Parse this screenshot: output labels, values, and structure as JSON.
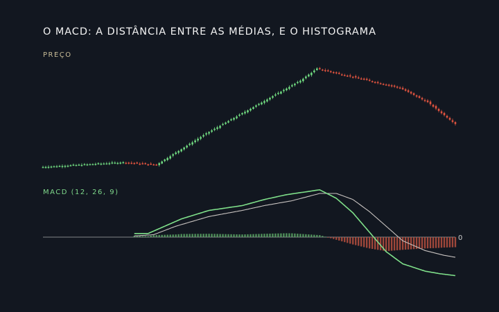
{
  "title": "O MACD: A DISTÂNCIA ENTRE AS MÉDIAS, E O HISTOGRAMA",
  "colors": {
    "background": "#121720",
    "up": "#6fd77f",
    "down": "#e0533f",
    "macd_line": "#7fe08a",
    "signal_line": "#c8c3c0",
    "hist_positive": "#5fae69",
    "hist_negative": "#b8503f",
    "zero_line": "#cfcfcf",
    "price_label": "#c9bd98",
    "macd_label": "#7fd98b"
  },
  "chart_data": [
    {
      "type": "candlestick",
      "panel_label": "PREÇO",
      "price_path": [
        [
          0,
          100
        ],
        [
          30,
          102
        ],
        [
          42,
          101
        ],
        [
          60,
          114
        ],
        [
          94,
          136
        ],
        [
          100,
          141
        ],
        [
          100,
          141
        ],
        [
          130,
          133
        ],
        [
          140,
          127
        ],
        [
          150,
          118
        ]
      ],
      "candles": 150,
      "grid": false
    },
    {
      "type": "line",
      "panel_label": "MACD (12, 26, 9)",
      "zero_label": "0",
      "series": [
        {
          "role": "macd",
          "points": [
            [
              33,
              0.15
            ],
            [
              38,
              0.15
            ],
            [
              42,
              0.35
            ],
            [
              50,
              0.75
            ],
            [
              60,
              1.1
            ],
            [
              72,
              1.3
            ],
            [
              80,
              1.55
            ],
            [
              88,
              1.75
            ],
            [
              100,
              1.95
            ],
            [
              106,
              1.6
            ],
            [
              112,
              1.0
            ],
            [
              118,
              0.2
            ],
            [
              124,
              -0.6
            ],
            [
              130,
              -1.1
            ],
            [
              138,
              -1.4
            ],
            [
              143,
              -1.5
            ],
            [
              150,
              -1.6
            ]
          ]
        },
        {
          "role": "signal",
          "points": [
            [
              33,
              0.05
            ],
            [
              40,
              0.1
            ],
            [
              48,
              0.45
            ],
            [
              60,
              0.85
            ],
            [
              72,
              1.1
            ],
            [
              80,
              1.3
            ],
            [
              90,
              1.5
            ],
            [
              100,
              1.8
            ],
            [
              106,
              1.8
            ],
            [
              112,
              1.55
            ],
            [
              118,
              1.05
            ],
            [
              124,
              0.45
            ],
            [
              130,
              -0.15
            ],
            [
              138,
              -0.55
            ],
            [
              145,
              -0.75
            ],
            [
              150,
              -0.85
            ]
          ]
        }
      ],
      "histogram": "macd minus signal",
      "ylim": [
        -2.0,
        2.3
      ],
      "grid": false
    }
  ]
}
